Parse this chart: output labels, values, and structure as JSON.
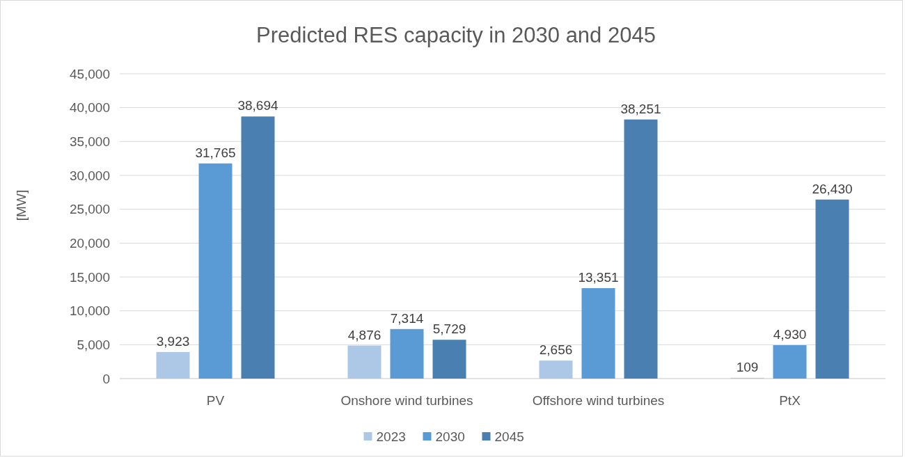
{
  "chart_data": {
    "type": "bar",
    "title": "Predicted RES capacity in 2030 and 2045",
    "ylabel": "[MW]",
    "categories": [
      "PV",
      "Onshore wind turbines",
      "Offshore wind turbines",
      "PtX"
    ],
    "series": [
      {
        "name": "2023",
        "color": "#adc7e7",
        "values": [
          3923,
          4876,
          2656,
          109
        ],
        "value_labels": [
          "3,923",
          "4,876",
          "2,656",
          "109"
        ]
      },
      {
        "name": "2030",
        "color": "#5b9bd5",
        "values": [
          31765,
          7314,
          13351,
          4930
        ],
        "value_labels": [
          "31,765",
          "7,314",
          "13,351",
          "4,930"
        ]
      },
      {
        "name": "2045",
        "color": "#4a7fb1",
        "values": [
          38694,
          5729,
          38251,
          26430
        ],
        "value_labels": [
          "38,694",
          "5,729",
          "38,251",
          "26,430"
        ]
      }
    ],
    "ylim": [
      0,
      45000
    ],
    "yticks": [
      {
        "value": 0,
        "label": "0"
      },
      {
        "value": 5000,
        "label": "5,000"
      },
      {
        "value": 10000,
        "label": "10,000"
      },
      {
        "value": 15000,
        "label": "15,000"
      },
      {
        "value": 20000,
        "label": "20,000"
      },
      {
        "value": 25000,
        "label": "25,000"
      },
      {
        "value": 30000,
        "label": "30,000"
      },
      {
        "value": 35000,
        "label": "35,000"
      },
      {
        "value": 40000,
        "label": "40,000"
      },
      {
        "value": 45000,
        "label": "45,000"
      }
    ],
    "grid": "y",
    "legend": "bottom"
  }
}
